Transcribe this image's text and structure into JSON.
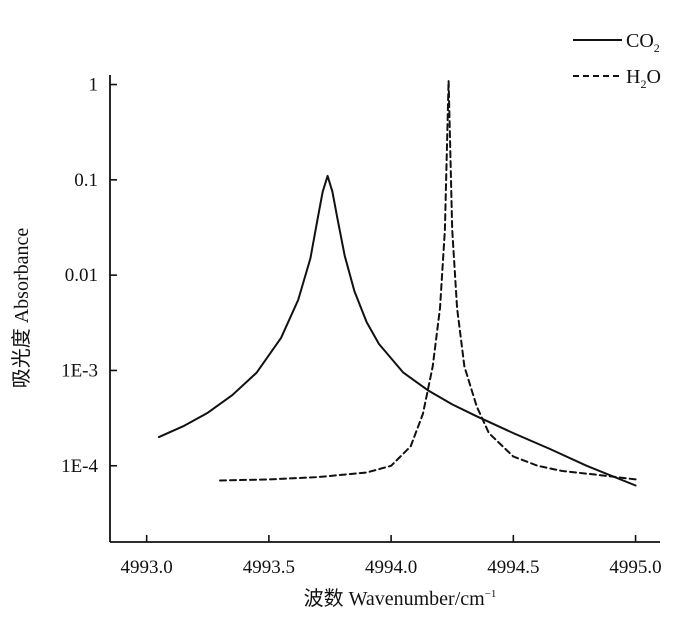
{
  "chart_data": {
    "type": "line",
    "title": "",
    "xlabel_prefix": "波数 Wavenumber/cm",
    "xlabel_sup": "−1",
    "ylabel": "吸光度 Absorbance",
    "x_ticks": [
      4993.0,
      4993.5,
      4994.0,
      4994.5,
      4995.0
    ],
    "x_tick_labels": [
      "4993.0",
      "4993.5",
      "4994.0",
      "4994.5",
      "4995.0"
    ],
    "y_scale": "log",
    "y_ticks": [
      0.0001,
      0.001,
      0.01,
      0.1,
      1
    ],
    "y_tick_labels": [
      "1E-4",
      "1E-3",
      "0.01",
      "0.1",
      "1"
    ],
    "xlim": [
      4992.85,
      4995.1
    ],
    "ylim_log10": [
      -4.8,
      0.1
    ],
    "legend_position": "top-right",
    "series": [
      {
        "name_main": "CO",
        "name_sub": "2",
        "style": "solid",
        "x": [
          4993.05,
          4993.15,
          4993.25,
          4993.35,
          4993.45,
          4993.55,
          4993.62,
          4993.67,
          4993.7,
          4993.72,
          4993.74,
          4993.76,
          4993.78,
          4993.81,
          4993.85,
          4993.9,
          4993.95,
          4994.05,
          4994.15,
          4994.25,
          4994.35,
          4994.5,
          4994.65,
          4994.8,
          4995.0
        ],
        "y": [
          0.0002,
          0.00026,
          0.00036,
          0.00055,
          0.00095,
          0.0022,
          0.0055,
          0.015,
          0.04,
          0.075,
          0.11,
          0.075,
          0.04,
          0.016,
          0.0068,
          0.0032,
          0.0019,
          0.00095,
          0.00062,
          0.00044,
          0.00033,
          0.00022,
          0.00015,
          0.0001,
          6.2e-05
        ]
      },
      {
        "name_main": "H",
        "name_sub": "2",
        "name_tail": "O",
        "style": "dashed",
        "x": [
          4993.3,
          4993.5,
          4993.7,
          4993.9,
          4994.0,
          4994.08,
          4994.13,
          4994.17,
          4994.2,
          4994.22,
          4994.235,
          4994.25,
          4994.27,
          4994.3,
          4994.35,
          4994.4,
          4994.5,
          4994.6,
          4994.7,
          4994.85,
          4995.0
        ],
        "y": [
          7e-05,
          7.2e-05,
          7.6e-05,
          8.5e-05,
          0.0001,
          0.00016,
          0.00035,
          0.0011,
          0.0045,
          0.03,
          1.1,
          0.03,
          0.0045,
          0.0011,
          0.00042,
          0.00022,
          0.000125,
          0.0001,
          8.8e-05,
          8e-05,
          7.2e-05
        ]
      }
    ]
  }
}
